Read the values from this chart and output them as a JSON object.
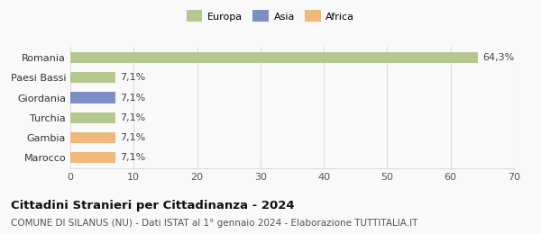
{
  "categories": [
    "Romania",
    "Paesi Bassi",
    "Giordania",
    "Turchia",
    "Gambia",
    "Marocco"
  ],
  "values": [
    64.3,
    7.1,
    7.1,
    7.1,
    7.1,
    7.1
  ],
  "labels": [
    "64,3%",
    "7,1%",
    "7,1%",
    "7,1%",
    "7,1%",
    "7,1%"
  ],
  "colors": [
    "#b5c98e",
    "#b5c98e",
    "#7b8ec8",
    "#b5c98e",
    "#f0b87a",
    "#f0b87a"
  ],
  "legend": [
    {
      "label": "Europa",
      "color": "#b5c98e"
    },
    {
      "label": "Asia",
      "color": "#7b8ec8"
    },
    {
      "label": "Africa",
      "color": "#f0b87a"
    }
  ],
  "xlim": [
    0,
    70
  ],
  "xticks": [
    0,
    10,
    20,
    30,
    40,
    50,
    60,
    70
  ],
  "title": "Cittadini Stranieri per Cittadinanza - 2024",
  "subtitle": "COMUNE DI SILANUS (NU) - Dati ISTAT al 1° gennaio 2024 - Elaborazione TUTTITALIA.IT",
  "background_color": "#f9f9f9",
  "grid_color": "#dddddd",
  "title_fontsize": 9.5,
  "subtitle_fontsize": 7.5,
  "tick_fontsize": 8,
  "label_fontsize": 8,
  "legend_fontsize": 8
}
